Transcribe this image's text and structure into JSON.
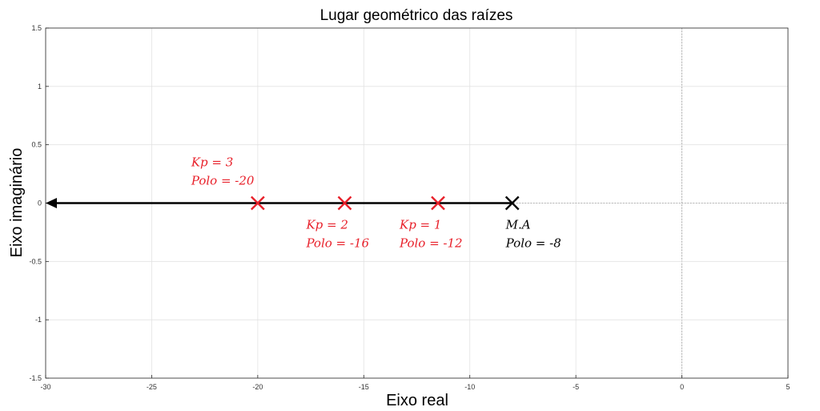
{
  "chart_data": {
    "type": "scatter",
    "title": "Lugar geométrico das raízes",
    "xlabel": "Eixo real",
    "ylabel": "Eixo imaginário",
    "xlim": [
      -30,
      5
    ],
    "ylim": [
      -1.5,
      1.5
    ],
    "xticks": [
      -30,
      -25,
      -20,
      -15,
      -10,
      -5,
      0,
      5
    ],
    "yticks": [
      -1.5,
      -1,
      -0.5,
      0,
      0.5,
      1,
      1.5
    ],
    "grid": true,
    "locus": {
      "from": -8,
      "to": -30,
      "y": 0,
      "color": "#000000"
    },
    "poles": [
      {
        "x": -8,
        "y": 0,
        "color": "#000000",
        "lines": [
          "M.A",
          "Polo = -8"
        ],
        "label_side": "below"
      },
      {
        "x": -11.5,
        "y": 0,
        "color": "#e8202a",
        "lines": [
          "Kp = 1",
          "Polo = -12"
        ],
        "label_side": "below"
      },
      {
        "x": -15.9,
        "y": 0,
        "color": "#e8202a",
        "lines": [
          "Kp = 2",
          "Polo = -16"
        ],
        "label_side": "below"
      },
      {
        "x": -20,
        "y": 0,
        "color": "#e8202a",
        "lines": [
          "Kp = 3",
          "Polo = -20"
        ],
        "label_side": "above"
      }
    ]
  }
}
